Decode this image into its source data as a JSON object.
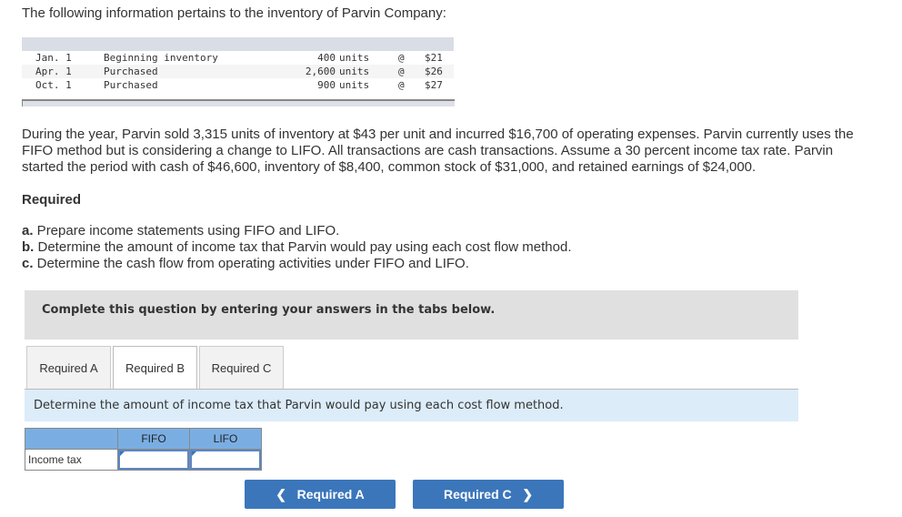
{
  "intro": "The following information pertains to the inventory of Parvin Company:",
  "inventory": [
    {
      "date": "Jan. 1",
      "desc": "Beginning inventory",
      "qty": "400",
      "unit": "units",
      "at": "@",
      "price": "$21"
    },
    {
      "date": "Apr. 1",
      "desc": "Purchased",
      "qty": "2,600",
      "unit": "units",
      "at": "@",
      "price": "$26"
    },
    {
      "date": "Oct. 1",
      "desc": "Purchased",
      "qty": "900",
      "unit": "units",
      "at": "@",
      "price": "$27"
    }
  ],
  "paragraph": "During the year, Parvin sold 3,315 units of inventory at $43 per unit and incurred $16,700 of operating expenses. Parvin currently uses the FIFO method but is considering a change to LIFO. All transactions are cash transactions. Assume a 30 percent income tax rate. Parvin started the period with cash of $46,600, inventory of $8,400, common stock of $31,000, and retained earnings of $24,000.",
  "required_heading": "Required",
  "requirements": [
    {
      "letter": "a.",
      "text": " Prepare income statements using FIFO and LIFO."
    },
    {
      "letter": "b.",
      "text": " Determine the amount of income tax that Parvin would pay using each cost flow method."
    },
    {
      "letter": "c.",
      "text": " Determine the cash flow from operating activities under FIFO and LIFO."
    }
  ],
  "banner": "Complete this question by entering your answers in the tabs below.",
  "tabs": [
    "Required A",
    "Required B",
    "Required C"
  ],
  "active_tab": "Required B",
  "instruction": "Determine the amount of income tax that Parvin would pay using each cost flow method.",
  "table": {
    "headers": [
      "",
      "FIFO",
      "LIFO"
    ],
    "row_label": "Income tax",
    "fifo_value": "",
    "lifo_value": ""
  },
  "nav": {
    "prev": "Required A",
    "next": "Required C"
  }
}
